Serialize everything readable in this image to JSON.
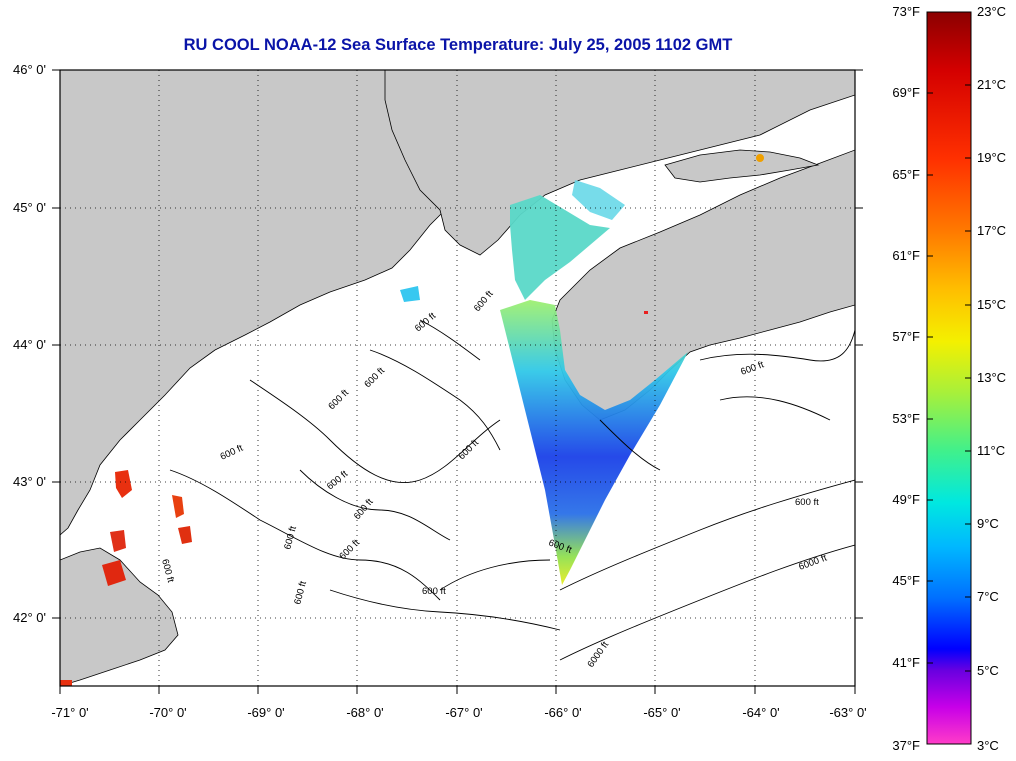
{
  "title": "RU COOL  NOAA-12  Sea Surface Temperature:  July 25, 2005 1102 GMT",
  "map": {
    "lon_range": [
      -71,
      -63
    ],
    "lat_range": [
      41.5,
      46
    ],
    "lon_ticks": [
      "-71° 0'",
      "-70° 0'",
      "-69° 0'",
      "-68° 0'",
      "-67° 0'",
      "-66° 0'",
      "-65° 0'",
      "-64° 0'",
      "-63° 0'"
    ],
    "lat_ticks": [
      "46° 0'",
      "45° 0'",
      "44° 0'",
      "43° 0'",
      "42° 0'"
    ],
    "contour_labels": {
      "a": "600 ft",
      "b": "600 ft",
      "c": "600 ft",
      "d": "600 ft",
      "e": "600 ft",
      "f": "600 ft",
      "g": "600 ft",
      "h": "600 ft",
      "i": "600 ft",
      "j": "600 ft",
      "k": "600 ft",
      "l": "600 ft",
      "m": "600 ft",
      "n": "600 ft",
      "o": "600 ft",
      "p": "600 ft",
      "q": "6000 ft",
      "r": "6000 ft"
    },
    "colors": {
      "land": "#c8c8c8",
      "water": "#ffffff",
      "title": "#0a14a8"
    }
  },
  "colorbar": {
    "fahrenheit": [
      "73°F",
      "69°F",
      "65°F",
      "61°F",
      "57°F",
      "53°F",
      "49°F",
      "45°F",
      "41°F",
      "37°F"
    ],
    "celsius": [
      "23°C",
      "21°C",
      "19°C",
      "17°C",
      "15°C",
      "13°C",
      "11°C",
      "9°C",
      "7°C",
      "5°C",
      "3°C"
    ]
  }
}
